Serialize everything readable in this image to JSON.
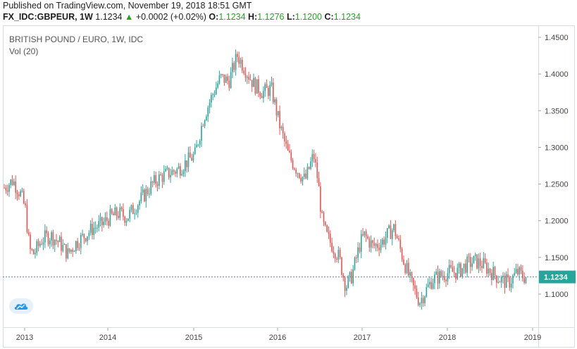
{
  "header": {
    "published": "Published on TradingView.com, November 19, 2018 18:51 GMT",
    "symbol": "FX_IDC:GBPEUR, 1W",
    "last": "1.1234",
    "change_arrow": "▲",
    "change": "+0.0002 (+0.02%)",
    "o_label": "O:",
    "o_value": "1.1234",
    "h_label": "H:",
    "h_value": "1.1276",
    "l_label": "L:",
    "l_value": "1.1200",
    "c_label": "C:",
    "c_value": "1.1234"
  },
  "legend": {
    "title": "BRITISH POUND / EURO, 1W, IDC",
    "indicator": "Vol (20)"
  },
  "logo_icon": "tradingview-logo-icon",
  "colors": {
    "up": "#26a69a",
    "down": "#ef5350",
    "price_line": "#26a69a",
    "price_tag": "#26a69a",
    "grid": "#e9ecf0",
    "axis_text": "#444444"
  },
  "chart_data": {
    "type": "candlestick",
    "title": "BRITISH POUND / EURO, 1W, IDC",
    "x_ticks": [
      "2013",
      "2014",
      "2015",
      "2016",
      "2017",
      "2018",
      "2019"
    ],
    "y_ticks": [
      "1.1000",
      "1.1500",
      "1.2000",
      "1.2500",
      "1.3000",
      "1.3500",
      "1.4000",
      "1.4500"
    ],
    "ylim": [
      1.05,
      1.46
    ],
    "last_price": "1.1234",
    "grid": false,
    "approx_closes": [
      [
        2012.75,
        1.245
      ],
      [
        2012.85,
        1.255
      ],
      [
        2012.95,
        1.235
      ],
      [
        2013.0,
        1.215
      ],
      [
        2013.05,
        1.16
      ],
      [
        2013.1,
        1.155
      ],
      [
        2013.2,
        1.175
      ],
      [
        2013.3,
        1.18
      ],
      [
        2013.4,
        1.17
      ],
      [
        2013.5,
        1.155
      ],
      [
        2013.6,
        1.17
      ],
      [
        2013.7,
        1.18
      ],
      [
        2013.8,
        1.19
      ],
      [
        2013.9,
        1.195
      ],
      [
        2014.0,
        1.205
      ],
      [
        2014.1,
        1.21
      ],
      [
        2014.2,
        1.205
      ],
      [
        2014.3,
        1.22
      ],
      [
        2014.4,
        1.235
      ],
      [
        2014.5,
        1.25
      ],
      [
        2014.6,
        1.26
      ],
      [
        2014.7,
        1.265
      ],
      [
        2014.8,
        1.27
      ],
      [
        2014.9,
        1.28
      ],
      [
        2015.0,
        1.29
      ],
      [
        2015.1,
        1.34
      ],
      [
        2015.2,
        1.37
      ],
      [
        2015.3,
        1.395
      ],
      [
        2015.4,
        1.39
      ],
      [
        2015.5,
        1.425
      ],
      [
        2015.6,
        1.405
      ],
      [
        2015.7,
        1.385
      ],
      [
        2015.8,
        1.375
      ],
      [
        2015.9,
        1.38
      ],
      [
        2016.0,
        1.33
      ],
      [
        2016.1,
        1.29
      ],
      [
        2016.2,
        1.27
      ],
      [
        2016.3,
        1.255
      ],
      [
        2016.4,
        1.29
      ],
      [
        2016.45,
        1.255
      ],
      [
        2016.5,
        1.2
      ],
      [
        2016.55,
        1.18
      ],
      [
        2016.6,
        1.17
      ],
      [
        2016.7,
        1.15
      ],
      [
        2016.78,
        1.11
      ],
      [
        2016.85,
        1.125
      ],
      [
        2016.95,
        1.17
      ],
      [
        2017.0,
        1.18
      ],
      [
        2017.1,
        1.165
      ],
      [
        2017.2,
        1.17
      ],
      [
        2017.3,
        1.185
      ],
      [
        2017.35,
        1.19
      ],
      [
        2017.45,
        1.15
      ],
      [
        2017.55,
        1.115
      ],
      [
        2017.65,
        1.09
      ],
      [
        2017.7,
        1.1
      ],
      [
        2017.8,
        1.12
      ],
      [
        2017.9,
        1.125
      ],
      [
        2018.0,
        1.13
      ],
      [
        2018.1,
        1.13
      ],
      [
        2018.2,
        1.14
      ],
      [
        2018.3,
        1.145
      ],
      [
        2018.4,
        1.14
      ],
      [
        2018.5,
        1.13
      ],
      [
        2018.6,
        1.12
      ],
      [
        2018.7,
        1.115
      ],
      [
        2018.8,
        1.13
      ],
      [
        2018.88,
        1.1234
      ]
    ]
  }
}
